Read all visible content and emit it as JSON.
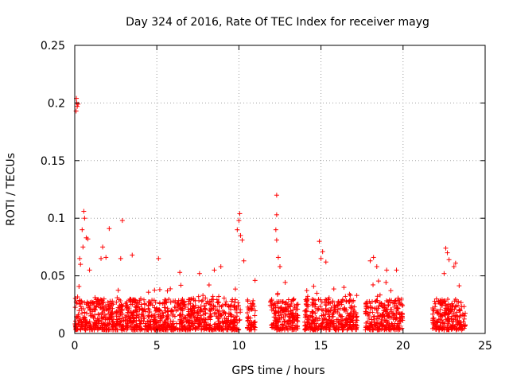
{
  "chart_data": {
    "type": "scatter",
    "title": "Day 324 of 2016, Rate Of TEC Index for receiver mayg",
    "xlabel": "GPS time / hours",
    "ylabel": "ROTI / TECUs",
    "xlim": [
      0,
      25
    ],
    "ylim": [
      0,
      0.25
    ],
    "xticks": [
      "0",
      "5",
      "10",
      "15",
      "20",
      "25"
    ],
    "yticks": [
      "0",
      "0.05",
      "0.1",
      "0.15",
      "0.2",
      "0.25"
    ],
    "grid": true,
    "marker": "plus",
    "color": "#ff0000",
    "series": [
      {
        "coverage_segments": [
          [
            0.0,
            10.1
          ],
          [
            10.5,
            11.0
          ],
          [
            11.9,
            13.6
          ],
          [
            14.0,
            17.2
          ],
          [
            17.7,
            20.0
          ],
          [
            21.8,
            23.8
          ]
        ],
        "baseline_range": [
          0.003,
          0.03
        ],
        "notable_points": [
          {
            "x": 0.1,
            "y": 0.204
          },
          {
            "x": 0.12,
            "y": 0.2
          },
          {
            "x": 0.15,
            "y": 0.197
          },
          {
            "x": 0.08,
            "y": 0.193
          },
          {
            "x": 0.2,
            "y": 0.199
          },
          {
            "x": 0.55,
            "y": 0.106
          },
          {
            "x": 0.6,
            "y": 0.1
          },
          {
            "x": 0.45,
            "y": 0.09
          },
          {
            "x": 0.7,
            "y": 0.083
          },
          {
            "x": 0.8,
            "y": 0.082
          },
          {
            "x": 0.3,
            "y": 0.065
          },
          {
            "x": 0.35,
            "y": 0.06
          },
          {
            "x": 0.5,
            "y": 0.075
          },
          {
            "x": 0.9,
            "y": 0.055
          },
          {
            "x": 2.1,
            "y": 0.091
          },
          {
            "x": 1.7,
            "y": 0.075
          },
          {
            "x": 1.6,
            "y": 0.065
          },
          {
            "x": 1.9,
            "y": 0.066
          },
          {
            "x": 2.9,
            "y": 0.098
          },
          {
            "x": 2.8,
            "y": 0.065
          },
          {
            "x": 3.5,
            "y": 0.068
          },
          {
            "x": 5.1,
            "y": 0.065
          },
          {
            "x": 6.4,
            "y": 0.053
          },
          {
            "x": 7.6,
            "y": 0.052
          },
          {
            "x": 8.5,
            "y": 0.055
          },
          {
            "x": 8.9,
            "y": 0.058
          },
          {
            "x": 10.05,
            "y": 0.104
          },
          {
            "x": 10.0,
            "y": 0.098
          },
          {
            "x": 9.9,
            "y": 0.09
          },
          {
            "x": 10.1,
            "y": 0.085
          },
          {
            "x": 10.2,
            "y": 0.081
          },
          {
            "x": 10.3,
            "y": 0.063
          },
          {
            "x": 12.3,
            "y": 0.12
          },
          {
            "x": 12.3,
            "y": 0.103
          },
          {
            "x": 12.25,
            "y": 0.09
          },
          {
            "x": 12.3,
            "y": 0.081
          },
          {
            "x": 12.4,
            "y": 0.066
          },
          {
            "x": 12.5,
            "y": 0.058
          },
          {
            "x": 14.9,
            "y": 0.08
          },
          {
            "x": 15.1,
            "y": 0.071
          },
          {
            "x": 15.0,
            "y": 0.065
          },
          {
            "x": 15.3,
            "y": 0.062
          },
          {
            "x": 16.4,
            "y": 0.04
          },
          {
            "x": 18.2,
            "y": 0.066
          },
          {
            "x": 18.0,
            "y": 0.063
          },
          {
            "x": 18.4,
            "y": 0.058
          },
          {
            "x": 19.0,
            "y": 0.055
          },
          {
            "x": 19.6,
            "y": 0.055
          },
          {
            "x": 22.6,
            "y": 0.074
          },
          {
            "x": 22.7,
            "y": 0.07
          },
          {
            "x": 22.8,
            "y": 0.064
          },
          {
            "x": 23.2,
            "y": 0.061
          },
          {
            "x": 23.1,
            "y": 0.058
          },
          {
            "x": 22.5,
            "y": 0.052
          }
        ]
      }
    ]
  }
}
